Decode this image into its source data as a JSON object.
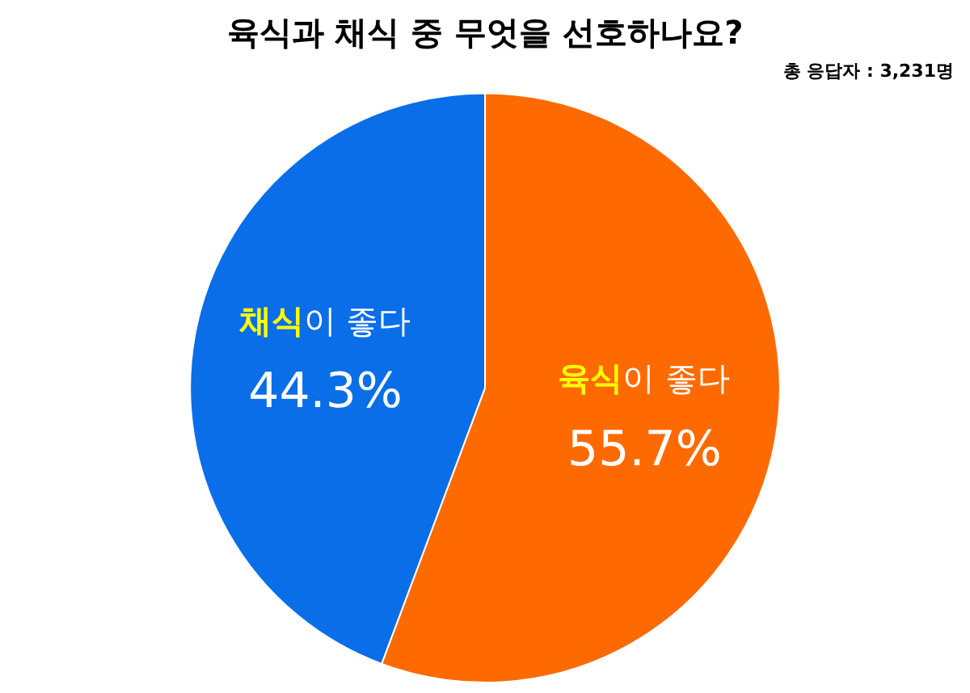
{
  "chart_data": {
    "type": "pie",
    "title": "육식과 채식 중 무엇을 선호하나요?",
    "subtitle": "총 응답자 : 3,231명",
    "categories": [
      "육식이 좋다",
      "채식이 좋다"
    ],
    "values": [
      55.7,
      44.3
    ],
    "colors": [
      "#ff6a00",
      "#0a6ee8"
    ],
    "value_labels": [
      "55.7%",
      "44.3%"
    ],
    "legend": false
  }
}
